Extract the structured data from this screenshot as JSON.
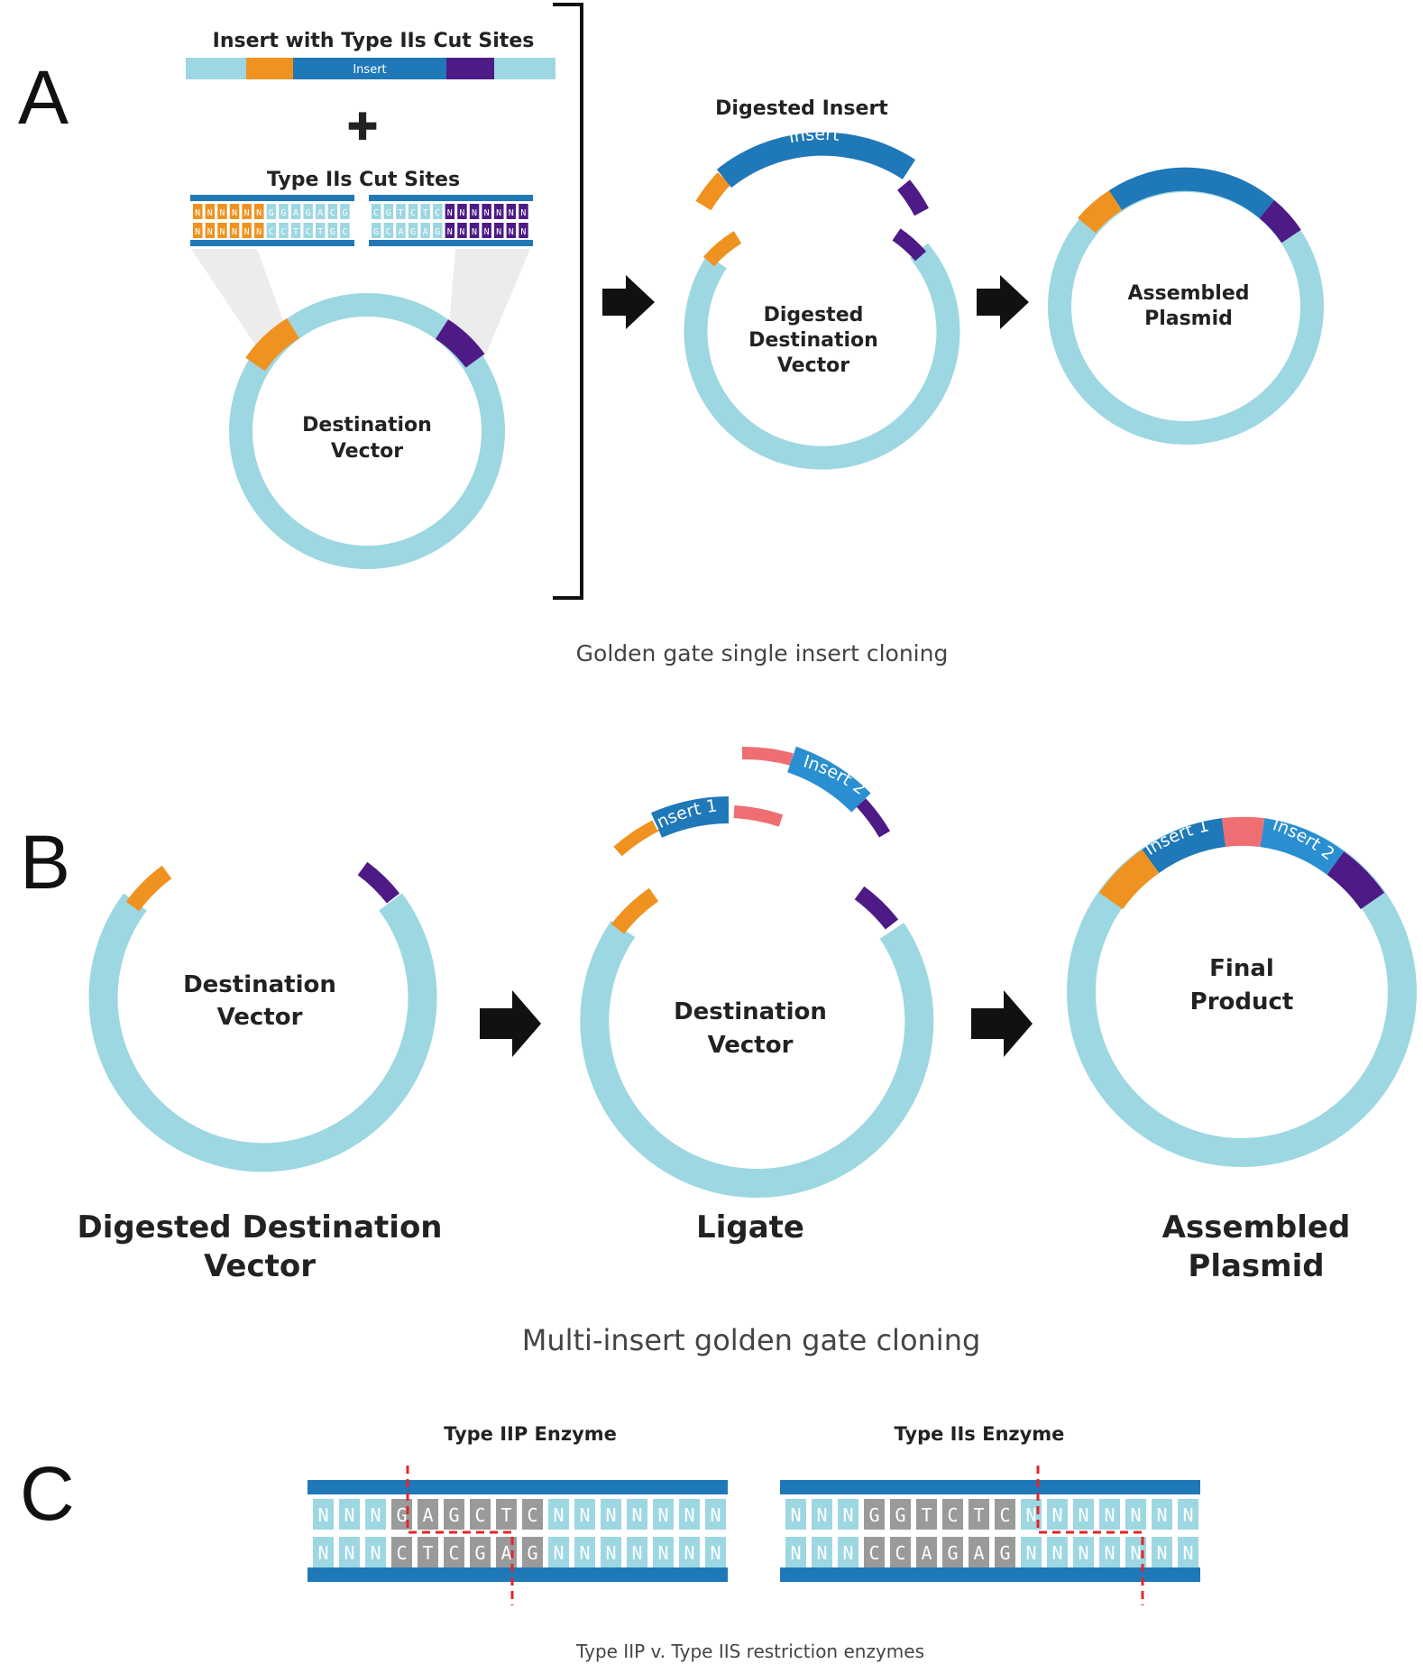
{
  "panel_a": {
    "letter": "A",
    "insert_bar_title": "Insert with Type IIs Cut Sites",
    "insert_bar_label": "Insert",
    "plus_symbol": "✚",
    "cut_sites_title": "Type IIs Cut Sites",
    "dest_vector": [
      "Destination",
      "Vector"
    ],
    "digested_insert_title": "Digested Insert",
    "digested_insert_arc_label": "Insert",
    "digested_dest_vector": [
      "Digested",
      "Destination",
      "Vector"
    ],
    "assembled_insert_label": "Insert",
    "assembled_plasmid": [
      "Assembled",
      "Plasmid"
    ],
    "caption": "Golden gate single insert cloning"
  },
  "panel_b": {
    "letter": "B",
    "circle1": [
      "Destination",
      "Vector"
    ],
    "circle1_caption": [
      "Digested Destination",
      "Vector"
    ],
    "insert1_label": "Insert 1",
    "insert2_label": "Insert 2",
    "circle2": [
      "Destination",
      "Vector"
    ],
    "circle2_caption": "Ligate",
    "final_insert1_label": "Insert 1",
    "final_insert2_label": "Insert 2",
    "circle3": [
      "Final",
      "Product"
    ],
    "circle3_caption": [
      "Assembled",
      "Plasmid"
    ],
    "caption": "Multi-insert golden gate cloning"
  },
  "panel_c": {
    "letter": "C",
    "left_title": "Type IIP Enzyme",
    "left_top_strand": [
      "N",
      "N",
      "N",
      "G",
      "A",
      "G",
      "C",
      "T",
      "C",
      "N",
      "N",
      "N",
      "N",
      "N",
      "N",
      "N"
    ],
    "left_bottom_strand": [
      "N",
      "N",
      "N",
      "C",
      "T",
      "C",
      "G",
      "A",
      "G",
      "N",
      "N",
      "N",
      "N",
      "N",
      "N",
      "N"
    ],
    "right_title": "Type IIs Enzyme",
    "right_top_strand": [
      "N",
      "N",
      "N",
      "G",
      "G",
      "T",
      "C",
      "T",
      "C",
      "N",
      "N",
      "N",
      "N",
      "N",
      "N",
      "N"
    ],
    "right_bottom_strand": [
      "N",
      "N",
      "N",
      "C",
      "C",
      "A",
      "G",
      "A",
      "G",
      "N",
      "N",
      "N",
      "N",
      "N",
      "N",
      "N"
    ],
    "caption": "Type IIP v. Type IIS restriction enzymes"
  },
  "mini_strands": {
    "left_top": [
      "N",
      "N",
      "N",
      "N",
      "N",
      "N",
      "G",
      "G",
      "A",
      "G",
      "A",
      "C",
      "G"
    ],
    "left_bottom": [
      "N",
      "N",
      "N",
      "N",
      "N",
      "N",
      "C",
      "C",
      "T",
      "C",
      "T",
      "G",
      "C"
    ],
    "right_top": [
      "C",
      "G",
      "T",
      "C",
      "T",
      "C",
      "N",
      "N",
      "N",
      "N",
      "N",
      "N",
      "N"
    ],
    "right_bottom": [
      "G",
      "C",
      "A",
      "G",
      "A",
      "G",
      "N",
      "N",
      "N",
      "N",
      "N",
      "N",
      "N"
    ]
  },
  "colors": {
    "backbone": "#9dd7e2",
    "insert": "#1f78b8",
    "insert_light": "#2a8fd0",
    "orange": "#ef9220",
    "purple": "#4d1a86",
    "pink": "#ef6e72",
    "grey_base": "#9a9a9a",
    "cut_line": "#e3252a"
  }
}
